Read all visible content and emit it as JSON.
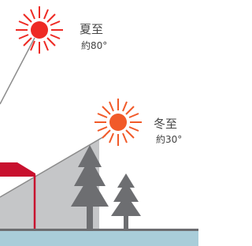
{
  "labels": [
    {
      "season": "夏至",
      "angle": "約80°"
    },
    {
      "season": "冬至",
      "angle": "約30°"
    }
  ]
}
